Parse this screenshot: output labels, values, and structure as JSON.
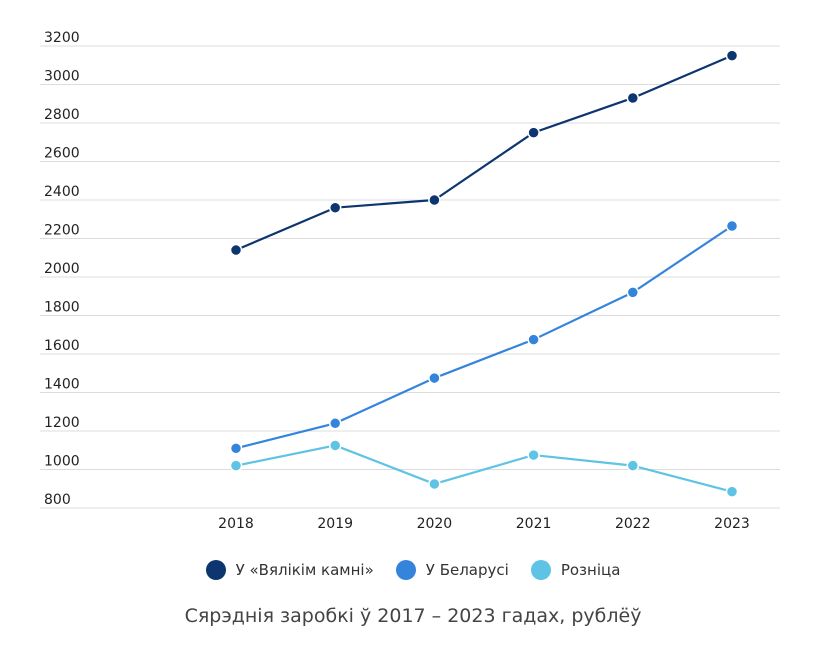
{
  "chart_data": {
    "type": "line",
    "title": "Сярэднія заробкі ў 2017 – 2023 гадах, рублёў",
    "x": [
      "2018",
      "2019",
      "2020",
      "2021",
      "2022",
      "2023"
    ],
    "ylim": [
      800,
      3200
    ],
    "yticks": [
      "800",
      "1000",
      "1200",
      "1400",
      "1600",
      "1800",
      "2000",
      "2200",
      "2400",
      "2600",
      "2800",
      "3000",
      "3200"
    ],
    "grid": true,
    "legend_position": "bottom",
    "series": [
      {
        "name": "У «Вялікім камні»",
        "color": "#0d3570",
        "values": [
          2140,
          2360,
          2400,
          2750,
          2930,
          3150
        ]
      },
      {
        "name": "У Беларусі",
        "color": "#3584dc",
        "values": [
          1110,
          1240,
          1475,
          1675,
          1920,
          2265
        ]
      },
      {
        "name": "Розніца",
        "color": "#5ec3e5",
        "values": [
          1020,
          1125,
          925,
          1075,
          1020,
          885
        ]
      }
    ]
  }
}
